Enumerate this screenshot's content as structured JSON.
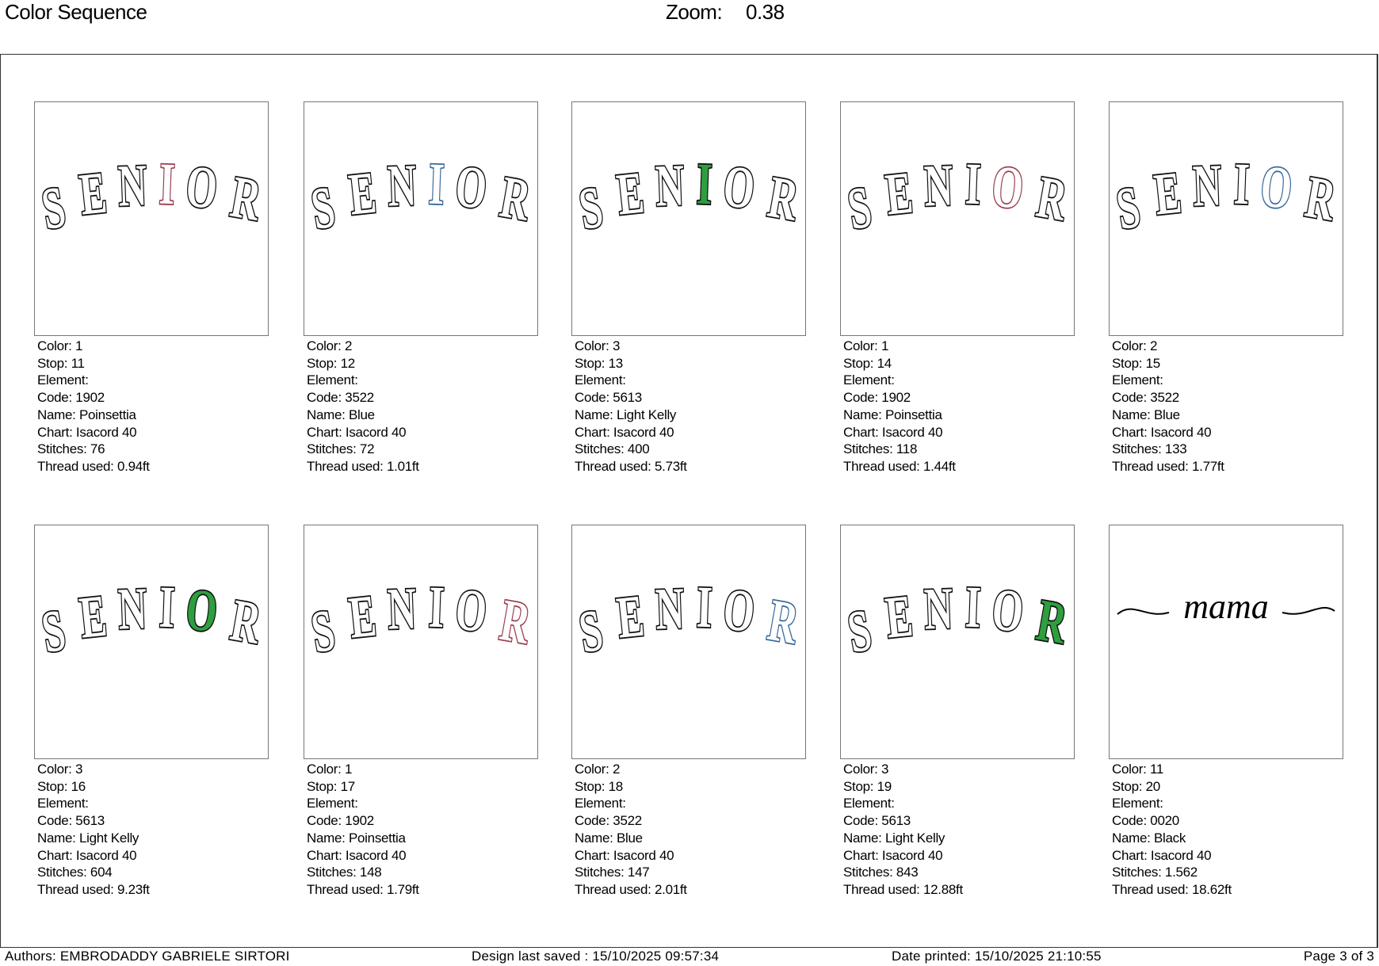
{
  "header": {
    "title": "Color Sequence",
    "zoom_label": "Zoom:",
    "zoom_value": "0.38"
  },
  "labels": {
    "color": "Color: ",
    "stop": "Stop: ",
    "element": "Element:",
    "code": "Code: ",
    "name": "Name: ",
    "chart": "Chart: ",
    "stitches": "Stitches: ",
    "thread": "Thread used: "
  },
  "design_text": "SENIOR",
  "script_text": "mama",
  "thread_colors": {
    "1902": "#9a4050",
    "3522": "#3a6a9a",
    "5613": "#2e9e3e",
    "0020": "#000000"
  },
  "stops": [
    {
      "color": "1",
      "stop": "11",
      "code": "1902",
      "name": "Poinsettia",
      "chart": "Isacord 40",
      "stitches": "76",
      "thread": "0.94ft",
      "highlight": 3,
      "fill": false
    },
    {
      "color": "2",
      "stop": "12",
      "code": "3522",
      "name": "Blue",
      "chart": "Isacord 40",
      "stitches": "72",
      "thread": "1.01ft",
      "highlight": 3,
      "fill": false
    },
    {
      "color": "3",
      "stop": "13",
      "code": "5613",
      "name": "Light Kelly",
      "chart": "Isacord 40",
      "stitches": "400",
      "thread": "5.73ft",
      "highlight": 3,
      "fill": true
    },
    {
      "color": "1",
      "stop": "14",
      "code": "1902",
      "name": "Poinsettia",
      "chart": "Isacord 40",
      "stitches": "118",
      "thread": "1.44ft",
      "highlight": 4,
      "fill": false
    },
    {
      "color": "2",
      "stop": "15",
      "code": "3522",
      "name": "Blue",
      "chart": "Isacord 40",
      "stitches": "133",
      "thread": "1.77ft",
      "highlight": 4,
      "fill": false
    },
    {
      "color": "3",
      "stop": "16",
      "code": "5613",
      "name": "Light Kelly",
      "chart": "Isacord 40",
      "stitches": "604",
      "thread": "9.23ft",
      "highlight": 4,
      "fill": true
    },
    {
      "color": "1",
      "stop": "17",
      "code": "1902",
      "name": "Poinsettia",
      "chart": "Isacord 40",
      "stitches": "148",
      "thread": "1.79ft",
      "highlight": 5,
      "fill": false
    },
    {
      "color": "2",
      "stop": "18",
      "code": "3522",
      "name": "Blue",
      "chart": "Isacord 40",
      "stitches": "147",
      "thread": "2.01ft",
      "highlight": 5,
      "fill": false
    },
    {
      "color": "3",
      "stop": "19",
      "code": "5613",
      "name": "Light Kelly",
      "chart": "Isacord 40",
      "stitches": "843",
      "thread": "12.88ft",
      "highlight": 5,
      "fill": true
    },
    {
      "color": "11",
      "stop": "20",
      "code": "0020",
      "name": "Black",
      "chart": "Isacord 40",
      "stitches": "1.562",
      "thread": "18.62ft",
      "highlight": -1,
      "fill": true,
      "script": true
    }
  ],
  "footer": {
    "authors": "Authors: EMBRODADDY GABRIELE SIRTORI",
    "saved": "Design last saved : 15/10/2025 09:57:34",
    "printed": "Date printed: 15/10/2025 21:10:55",
    "page": "Page 3 of 3"
  }
}
